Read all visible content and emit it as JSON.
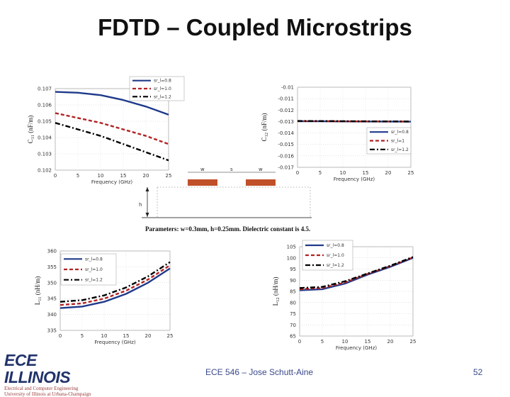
{
  "slide": {
    "title": "FDTD – Coupled Microstrips",
    "parameters": "Parameters: w=0.3mm, h=0.25mm. Dielectric constant is 4.5.",
    "footer_course": "ECE 546 – Jose Schutt-Aine",
    "page_number": "52",
    "logo_text": "ECE ILLINOIS",
    "logo_subtext_1": "Electrical and Computer Engineering",
    "logo_subtext_2": "University of Illinois at Urbana-Champaign"
  },
  "diagram": {
    "label_w1": "w",
    "label_s": "s",
    "label_w2": "w",
    "label_h": "h",
    "strip_color": "#c0502a"
  },
  "chart_data": [
    {
      "id": "c11",
      "type": "line",
      "xlabel": "Frequency (GHz)",
      "ylabel": "C11 (nF/m)",
      "ylabel_main": "C",
      "ylabel_sub": "11",
      "ylabel_unit": " (nF/m)",
      "xlim": [
        0,
        25
      ],
      "ylim": [
        0.102,
        0.107
      ],
      "xticks": [
        0,
        5,
        10,
        15,
        20,
        25
      ],
      "xtick_labels": [
        "0",
        "5",
        "10",
        "15",
        "20",
        "25"
      ],
      "yticks": [
        0.102,
        0.103,
        0.104,
        0.105,
        0.106,
        0.107
      ],
      "ytick_labels": [
        "0.102",
        "0.103",
        "0.104",
        "0.105",
        "0.106",
        "0.107"
      ],
      "legend_position": "top-center",
      "series": [
        {
          "name": "sr_l=0.8",
          "style": "solid",
          "color": "#1f3a8a",
          "x": [
            0,
            5,
            10,
            15,
            20,
            25
          ],
          "y": [
            0.1068,
            0.10675,
            0.1066,
            0.1063,
            0.1059,
            0.1054
          ]
        },
        {
          "name": "sr_l=1.0",
          "style": "dashed",
          "color": "#b22222",
          "x": [
            0,
            5,
            10,
            15,
            20,
            25
          ],
          "y": [
            0.1055,
            0.1052,
            0.1049,
            0.1045,
            0.1041,
            0.1036
          ]
        },
        {
          "name": "sr_l=1.2",
          "style": "dashdot",
          "color": "#000000",
          "x": [
            0,
            5,
            10,
            15,
            20,
            25
          ],
          "y": [
            0.1049,
            0.1045,
            0.1041,
            0.1036,
            0.1031,
            0.1026
          ]
        }
      ]
    },
    {
      "id": "c12",
      "type": "line",
      "xlabel": "Frequency (GHz)",
      "ylabel": "C12 (nF/m)",
      "ylabel_main": "C",
      "ylabel_sub": "12",
      "ylabel_unit": " (nF/m)",
      "xlim": [
        0,
        25
      ],
      "ylim": [
        -0.017,
        -0.01
      ],
      "xticks": [
        0,
        5,
        10,
        15,
        20,
        25
      ],
      "xtick_labels": [
        "0",
        "5",
        "10",
        "15",
        "20",
        "25"
      ],
      "yticks": [
        -0.01,
        -0.011,
        -0.012,
        -0.013,
        -0.014,
        -0.015,
        -0.016,
        -0.017
      ],
      "ytick_labels": [
        "-0.01",
        "-0.011",
        "-0.012",
        "-0.013",
        "-0.014",
        "-0.015",
        "-0.016",
        "-0.017"
      ],
      "legend_position": "right",
      "series": [
        {
          "name": "sr_l=0.8",
          "style": "solid",
          "color": "#1f3a8a",
          "x": [
            0,
            5,
            10,
            15,
            20,
            25
          ],
          "y": [
            -0.01298,
            -0.01298,
            -0.01299,
            -0.013,
            -0.013,
            -0.01301
          ]
        },
        {
          "name": "sr_l=1",
          "style": "dashed",
          "color": "#b22222",
          "x": [
            0,
            5,
            10,
            15,
            20,
            25
          ],
          "y": [
            -0.01296,
            -0.01297,
            -0.01298,
            -0.01299,
            -0.013,
            -0.013
          ]
        },
        {
          "name": "sr_l=1.2",
          "style": "dashdot",
          "color": "#000000",
          "x": [
            0,
            5,
            10,
            15,
            20,
            25
          ],
          "y": [
            -0.01295,
            -0.01296,
            -0.01297,
            -0.01298,
            -0.01299,
            -0.013
          ]
        }
      ]
    },
    {
      "id": "l11",
      "type": "line",
      "xlabel": "Frequency (GHz)",
      "ylabel": "L11 (nH/m)",
      "ylabel_main": "L",
      "ylabel_sub": "11",
      "ylabel_unit": " (nH/m)",
      "xlim": [
        0,
        25
      ],
      "ylim": [
        335,
        360
      ],
      "xticks": [
        0,
        5,
        10,
        15,
        20,
        25
      ],
      "xtick_labels": [
        "0",
        "5",
        "10",
        "15",
        "20",
        "25"
      ],
      "yticks": [
        335,
        340,
        345,
        350,
        355,
        360
      ],
      "ytick_labels": [
        "335",
        "340",
        "345",
        "350",
        "355",
        "360"
      ],
      "legend_position": "top-left",
      "series": [
        {
          "name": "sr_l=0.8",
          "style": "solid",
          "color": "#1f3a8a",
          "x": [
            0,
            5,
            10,
            15,
            20,
            25
          ],
          "y": [
            342.0,
            342.5,
            344.0,
            346.5,
            350.0,
            354.5
          ]
        },
        {
          "name": "sr_l=1.0",
          "style": "dashed",
          "color": "#b22222",
          "x": [
            0,
            5,
            10,
            15,
            20,
            25
          ],
          "y": [
            343.0,
            343.5,
            345.0,
            347.5,
            351.0,
            355.5
          ]
        },
        {
          "name": "sr_l=1.2",
          "style": "dashdot",
          "color": "#000000",
          "x": [
            0,
            5,
            10,
            15,
            20,
            25
          ],
          "y": [
            344.0,
            344.5,
            346.0,
            348.5,
            352.0,
            356.5
          ]
        }
      ]
    },
    {
      "id": "l12",
      "type": "line",
      "xlabel": "Frequency (GHz)",
      "ylabel": "L12 (nH/m)",
      "ylabel_main": "L",
      "ylabel_sub": "12",
      "ylabel_unit": " (nH/m)",
      "xlim": [
        0,
        25
      ],
      "ylim": [
        65,
        105
      ],
      "xticks": [
        0,
        5,
        10,
        15,
        20,
        25
      ],
      "xtick_labels": [
        "0",
        "5",
        "10",
        "15",
        "20",
        "25"
      ],
      "yticks": [
        65,
        70,
        75,
        80,
        85,
        90,
        95,
        100,
        105
      ],
      "ytick_labels": [
        "65",
        "70",
        "75",
        "80",
        "85",
        "90",
        "95",
        "100",
        "105"
      ],
      "legend_position": "top-right",
      "series": [
        {
          "name": "sr_l=0.8",
          "style": "solid",
          "color": "#1f3a8a",
          "x": [
            0,
            5,
            10,
            15,
            20,
            25
          ],
          "y": [
            85.5,
            86.0,
            88.5,
            92.5,
            96.0,
            100.0
          ]
        },
        {
          "name": "sr_l=1.0",
          "style": "dashed",
          "color": "#b22222",
          "x": [
            0,
            5,
            10,
            15,
            20,
            25
          ],
          "y": [
            86.0,
            86.5,
            89.0,
            92.8,
            96.3,
            100.2
          ]
        },
        {
          "name": "sr_l=1.2",
          "style": "dashdot",
          "color": "#000000",
          "x": [
            0,
            5,
            10,
            15,
            20,
            25
          ],
          "y": [
            86.5,
            87.0,
            89.5,
            93.0,
            96.5,
            100.4
          ]
        }
      ]
    }
  ]
}
